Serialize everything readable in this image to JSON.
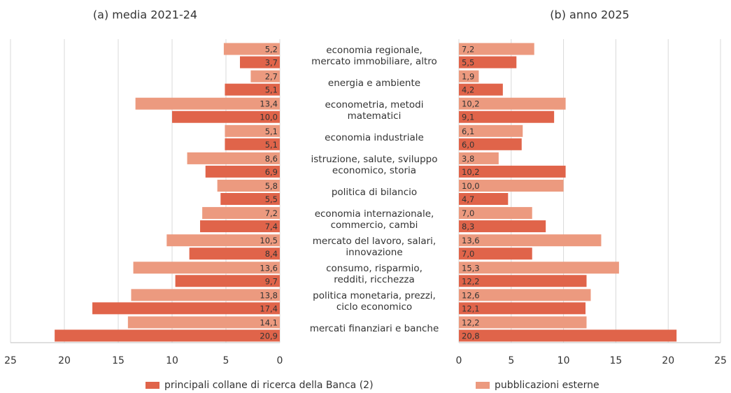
{
  "chart_data": {
    "type": "bar",
    "orientation": "horizontal",
    "grid": true,
    "categories": [
      "economia regionale,\nmercato immobiliare, altro",
      "energia e ambiente",
      "econometria, metodi\nmatematici",
      "economia industriale",
      "istruzione, salute, sviluppo\neconomico, storia",
      "politica di bilancio",
      "economia internazionale,\ncommercio, cambi",
      "mercato del lavoro, salari,\ninnovazione",
      "consumo, risparmio,\nredditi, ricchezza",
      "politica monetaria, prezzi,\nciclo economico",
      "mercati finanziari e banche"
    ],
    "legend": [
      {
        "name": "principali collane di ricerca della Banca (2)",
        "color": "#e0644a"
      },
      {
        "name": "pubblicazioni esterne",
        "color": "#ec9a7f"
      }
    ],
    "panels": [
      {
        "title": "(a) media 2021-24",
        "xlim": [
          25,
          0
        ],
        "xticks": [
          25,
          20,
          15,
          10,
          5,
          0
        ],
        "series": [
          {
            "values": [
              3.7,
              5.1,
              10.0,
              5.1,
              6.9,
              5.5,
              7.4,
              8.4,
              9.7,
              17.4,
              20.9
            ],
            "value_labels": [
              "3,7",
              "5,1",
              "10,0",
              "5,1",
              "6,9",
              "5,5",
              "7,4",
              "8,4",
              "9,7",
              "17,4",
              "20,9"
            ]
          },
          {
            "values": [
              5.2,
              2.7,
              13.4,
              5.1,
              8.6,
              5.8,
              7.2,
              10.5,
              13.6,
              13.8,
              14.1
            ],
            "value_labels": [
              "5,2",
              "2,7",
              "13,4",
              "5,1",
              "8,6",
              "5,8",
              "7,2",
              "10,5",
              "13,6",
              "13,8",
              "14,1"
            ]
          }
        ]
      },
      {
        "title": "(b) anno 2025",
        "xlim": [
          0,
          25
        ],
        "xticks": [
          0,
          5,
          10,
          15,
          20,
          25
        ],
        "series": [
          {
            "values": [
              5.5,
              4.2,
              9.1,
              6.0,
              10.2,
              4.7,
              8.3,
              7.0,
              12.2,
              12.1,
              20.8
            ],
            "value_labels": [
              "5,5",
              "4,2",
              "9,1",
              "6,0",
              "10,2",
              "4,7",
              "8,3",
              "7,0",
              "12,2",
              "12,1",
              "20,8"
            ]
          },
          {
            "values": [
              7.2,
              1.9,
              10.2,
              6.1,
              3.8,
              10.0,
              7.0,
              13.6,
              15.3,
              12.6,
              12.2
            ],
            "value_labels": [
              "7,2",
              "1,9",
              "10,2",
              "6,1",
              "3,8",
              "10,0",
              "7,0",
              "13,6",
              "15,3",
              "12,6",
              "12,2"
            ]
          }
        ]
      }
    ]
  }
}
